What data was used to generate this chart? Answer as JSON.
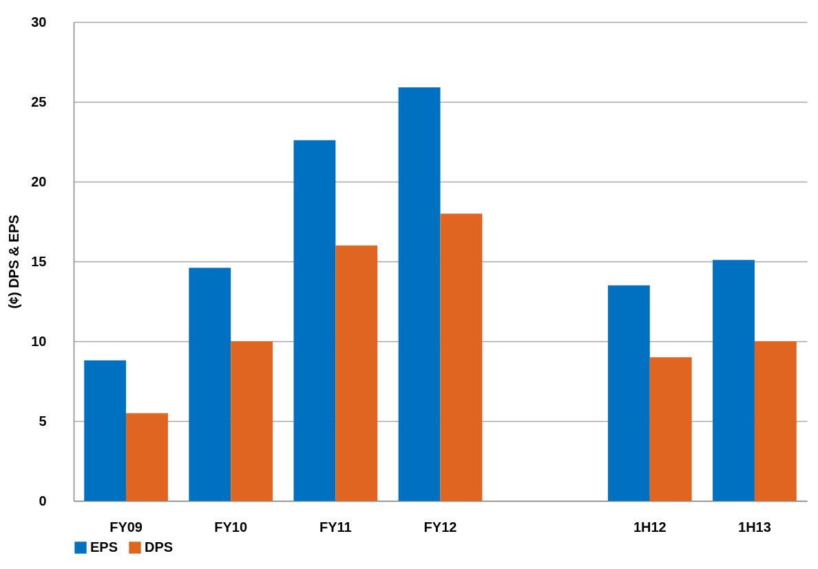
{
  "chart_data": {
    "type": "bar",
    "ylabel": "(¢) DPS & EPS",
    "categories": [
      "FY09",
      "FY10",
      "FY11",
      "FY12",
      null,
      "1H12",
      "1H13"
    ],
    "series": [
      {
        "name": "EPS",
        "color": "#0070c0",
        "values": [
          8.8,
          14.6,
          22.6,
          25.9,
          null,
          13.5,
          15.1
        ]
      },
      {
        "name": "DPS",
        "color": "#e06520",
        "values": [
          5.5,
          10,
          16,
          18,
          null,
          9,
          10
        ]
      }
    ],
    "ylim": [
      0,
      30
    ],
    "yticks": [
      0,
      5,
      10,
      15,
      20,
      25,
      30
    ],
    "grid": "y",
    "legend": "bottom"
  }
}
